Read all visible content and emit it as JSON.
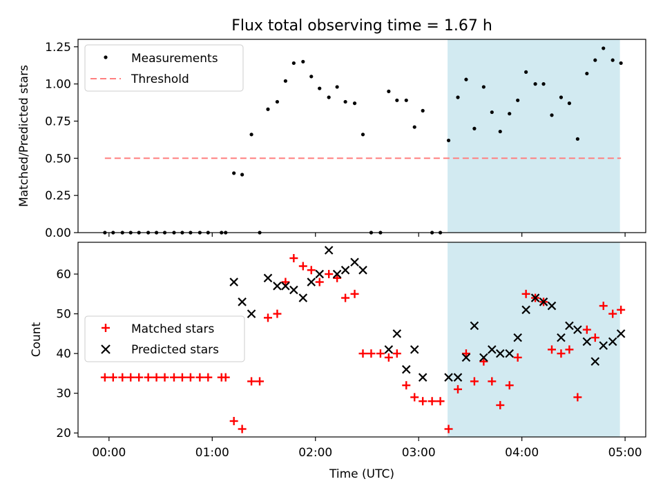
{
  "chart_data": [
    {
      "type": "scatter",
      "title": "Flux total observing time = 1.67 h",
      "xlabel": "",
      "ylabel": "Matched/Predicted stars",
      "xlim": [
        -0.3,
        5.2
      ],
      "ylim": [
        0,
        1.3
      ],
      "yticks": [
        0,
        0.25,
        0.5,
        0.75,
        1.0,
        1.25
      ],
      "ytick_labels": [
        "0.00",
        "0.25",
        "0.50",
        "0.75",
        "1.00",
        "1.25"
      ],
      "shaded_region": {
        "x": [
          3.28,
          4.95
        ],
        "color": "#add8e6"
      },
      "legend_position": "upper-left",
      "series": [
        {
          "name": "Measurements",
          "marker": "dot",
          "color": "#000000",
          "x": [
            -0.04,
            0.04,
            0.13,
            0.21,
            0.29,
            0.38,
            0.46,
            0.54,
            0.63,
            0.71,
            0.79,
            0.88,
            0.96,
            1.09,
            1.13,
            1.21,
            1.29,
            1.38,
            1.46,
            1.54,
            1.63,
            1.71,
            1.79,
            1.88,
            1.96,
            2.04,
            2.13,
            2.21,
            2.29,
            2.38,
            2.46,
            2.54,
            2.63,
            2.71,
            2.79,
            2.88,
            2.96,
            3.04,
            3.13,
            3.21,
            3.29,
            3.38,
            3.46,
            3.54,
            3.63,
            3.71,
            3.79,
            3.88,
            3.96,
            4.04,
            4.13,
            4.21,
            4.29,
            4.38,
            4.46,
            4.54,
            4.63,
            4.71,
            4.79,
            4.88,
            4.96
          ],
          "y": [
            0,
            0,
            0,
            0,
            0,
            0,
            0,
            0,
            0,
            0,
            0,
            0,
            0,
            0,
            0,
            0.4,
            0.39,
            0.66,
            0,
            0.83,
            0.88,
            1.02,
            1.14,
            1.15,
            1.05,
            0.97,
            0.91,
            0.98,
            0.88,
            0.87,
            0.66,
            0,
            0,
            0.95,
            0.89,
            0.89,
            0.71,
            0.82,
            0,
            0,
            0.62,
            0.91,
            1.03,
            0.7,
            0.98,
            0.81,
            0.68,
            0.8,
            0.89,
            1.08,
            1.0,
            1.0,
            0.79,
            0.91,
            0.87,
            0.63,
            1.07,
            1.16,
            1.24,
            1.16,
            1.14
          ]
        },
        {
          "name": "Threshold",
          "marker": "dashed-line",
          "color": "#ff7f7f",
          "x": [
            -0.04,
            4.96
          ],
          "y": [
            0.5,
            0.5
          ]
        }
      ]
    },
    {
      "type": "scatter",
      "title": "",
      "xlabel": "Time (UTC)",
      "ylabel": "Count",
      "xlim": [
        -0.3,
        5.2
      ],
      "ylim": [
        19,
        68
      ],
      "yticks": [
        20,
        30,
        40,
        50,
        60
      ],
      "ytick_labels": [
        "20",
        "30",
        "40",
        "50",
        "60"
      ],
      "xticks": [
        0,
        1,
        2,
        3,
        4,
        5
      ],
      "xtick_labels": [
        "00:00",
        "01:00",
        "02:00",
        "03:00",
        "04:00",
        "05:00"
      ],
      "shaded_region": {
        "x": [
          3.28,
          4.95
        ],
        "color": "#add8e6"
      },
      "legend_position": "center-left",
      "series": [
        {
          "name": "Matched stars",
          "marker": "plus",
          "color": "#ff0000",
          "x": [
            -0.04,
            0.04,
            0.13,
            0.21,
            0.29,
            0.38,
            0.46,
            0.54,
            0.63,
            0.71,
            0.79,
            0.88,
            0.96,
            1.09,
            1.13,
            1.21,
            1.29,
            1.38,
            1.46,
            1.54,
            1.63,
            1.71,
            1.79,
            1.88,
            1.96,
            2.04,
            2.13,
            2.21,
            2.29,
            2.38,
            2.46,
            2.54,
            2.63,
            2.71,
            2.79,
            2.88,
            2.96,
            3.04,
            3.13,
            3.21,
            3.29,
            3.38,
            3.46,
            3.54,
            3.63,
            3.71,
            3.79,
            3.88,
            3.96,
            4.04,
            4.13,
            4.21,
            4.29,
            4.38,
            4.46,
            4.54,
            4.63,
            4.71,
            4.79,
            4.88,
            4.96
          ],
          "y": [
            34,
            34,
            34,
            34,
            34,
            34,
            34,
            34,
            34,
            34,
            34,
            34,
            34,
            34,
            34,
            23,
            21,
            33,
            33,
            49,
            50,
            58,
            64,
            62,
            61,
            58,
            60,
            59,
            54,
            55,
            40,
            40,
            40,
            39,
            40,
            32,
            29,
            28,
            28,
            28,
            21,
            31,
            40,
            33,
            38,
            33,
            27,
            32,
            39,
            55,
            54,
            53,
            41,
            40,
            41,
            29,
            46,
            44,
            52,
            50,
            51
          ]
        },
        {
          "name": "Predicted stars",
          "marker": "x",
          "color": "#000000",
          "x": [
            1.21,
            1.29,
            1.38,
            1.54,
            1.63,
            1.71,
            1.79,
            1.88,
            1.96,
            2.04,
            2.13,
            2.21,
            2.29,
            2.38,
            2.46,
            2.71,
            2.79,
            2.88,
            2.96,
            3.04,
            3.29,
            3.38,
            3.46,
            3.54,
            3.63,
            3.71,
            3.79,
            3.88,
            3.96,
            4.04,
            4.13,
            4.21,
            4.29,
            4.38,
            4.46,
            4.54,
            4.63,
            4.71,
            4.79,
            4.88,
            4.96
          ],
          "y": [
            58,
            53,
            50,
            59,
            57,
            57,
            56,
            54,
            58,
            60,
            66,
            60,
            61,
            63,
            61,
            41,
            45,
            36,
            41,
            34,
            34,
            34,
            39,
            47,
            39,
            41,
            40,
            40,
            44,
            51,
            54,
            53,
            52,
            44,
            47,
            46,
            43,
            38,
            42,
            43,
            45
          ]
        }
      ]
    }
  ]
}
